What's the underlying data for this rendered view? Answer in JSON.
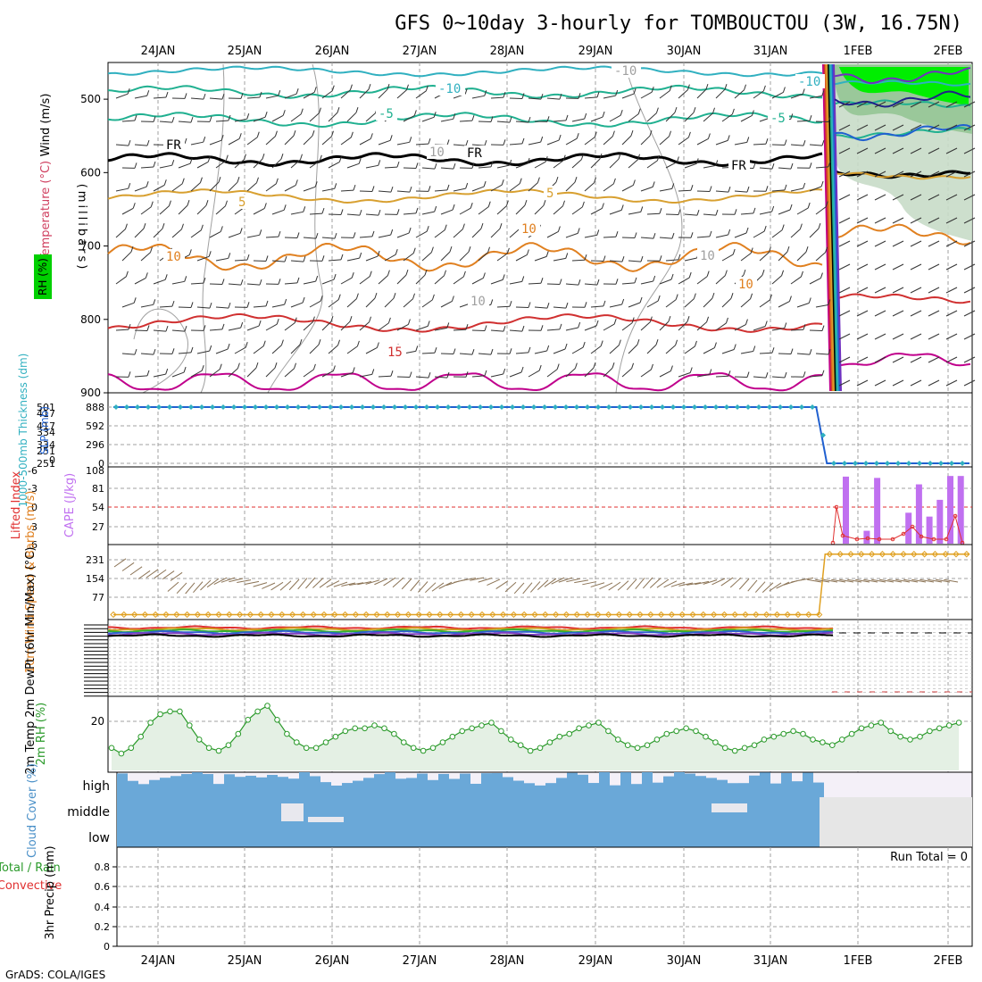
{
  "title": "GFS 0~10day 3-hourly for TOMBOUCTOU (3W, 16.75N)",
  "footer": "GrADS: COLA/IGES",
  "dates": [
    "24JAN",
    "25JAN",
    "26JAN",
    "27JAN",
    "28JAN",
    "29JAN",
    "30JAN",
    "31JAN",
    "1FEB",
    "2FEB"
  ],
  "colors": {
    "grid": "#a0a0a0",
    "rh_fill": "#00ee00",
    "slp": "#2060d0",
    "thickness": "#30b0c0",
    "cape": "#c070f0",
    "lifted": "#e03030",
    "wind_speed": "#e0a020",
    "barb": "#8b7355",
    "rh2m": "#2a9a2a",
    "cloud": "#6aa8d8",
    "cloud_bg": "#f4f0f8",
    "nodata": "#e6e6e6"
  },
  "panels": {
    "upper": {
      "ylabels": {
        "wind": "Wind (m/s)",
        "temp": "Temperature (°C)",
        "rh": "RH (%)",
        "pressure": "(millibars)"
      },
      "pressure_ticks": [
        "500",
        "600",
        "700",
        "800",
        "900"
      ],
      "contour_labels": [
        {
          "text": "-10",
          "color": "#30b0c0"
        },
        {
          "text": "-10",
          "color": "#30b0c0"
        },
        {
          "text": "-5",
          "color": "#20b090"
        },
        {
          "text": "-5",
          "color": "#20b090"
        },
        {
          "text": "FR",
          "color": "#000000"
        },
        {
          "text": "FR",
          "color": "#000000"
        },
        {
          "text": "FR",
          "color": "#000000"
        },
        {
          "text": "5",
          "color": "#d8a030"
        },
        {
          "text": "5",
          "color": "#d8a030"
        },
        {
          "text": "10",
          "color": "#e08020"
        },
        {
          "text": "10",
          "color": "#e08020"
        },
        {
          "text": "10",
          "color": "#e08020"
        },
        {
          "text": "15",
          "color": "#d03030"
        },
        {
          "text": "-10",
          "color": "#a0a0a0"
        },
        {
          "text": "10",
          "color": "#a0a0a0"
        },
        {
          "text": "10",
          "color": "#a0a0a0"
        },
        {
          "text": "10",
          "color": "#a0a0a0"
        }
      ]
    },
    "slp": {
      "ylabel_left": "1000-500mb Thickness (dm)",
      "ylabel_right": "SLP (mb)",
      "left_ticks": [
        "501",
        "417",
        "334",
        "251",
        "167",
        "0"
      ],
      "right_ticks": [
        "888",
        "592",
        "296",
        "0"
      ]
    },
    "cape": {
      "ylabel_left": "Lifted Index",
      "ylabel_right": "CAPE (J/kg)",
      "left_ticks": [
        "-6",
        "-3",
        "0",
        "3",
        "6"
      ],
      "right_ticks": [
        "108",
        "81",
        "54",
        "27"
      ]
    },
    "wind10": {
      "ylabel": "10m Wind Speed & Barbs (m/s)",
      "ticks": [
        "231",
        "154",
        "77"
      ]
    },
    "temp2m": {
      "ylabel": "2m Temp 2m DewPt (6hr Min/Max) (°C)"
    },
    "rh2m": {
      "ylabel": "2m RH (%)",
      "ticks": [
        "20"
      ]
    },
    "cloud": {
      "ylabel": "Cloud Cover (%)",
      "levels": [
        "high",
        "middle",
        "low"
      ]
    },
    "precip": {
      "ylabel": "3hr Precip (mm)",
      "ylabel_total": "Total / Rain",
      "ylabel_conv": "Convective",
      "ticks": [
        "0.8",
        "0.6",
        "0.4",
        "0.2",
        "0"
      ],
      "run_total": "Run Total = 0"
    }
  },
  "chart_data": [
    {
      "type": "line",
      "title": "1000-500mb Thickness / SLP",
      "x": [
        "24JAN",
        "25JAN",
        "26JAN",
        "27JAN",
        "28JAN",
        "29JAN",
        "30JAN",
        "31JAN",
        "1FEB",
        "2FEB"
      ],
      "series": [
        {
          "name": "SLP (mb)",
          "values": [
            900,
            900,
            900,
            900,
            900,
            900,
            900,
            900,
            0,
            0
          ]
        }
      ],
      "ylim": [
        0,
        1000
      ]
    },
    {
      "type": "bar",
      "title": "CAPE (J/kg)",
      "x_hours": [
        "1FEB-00",
        "1FEB-03",
        "1FEB-06",
        "1FEB-09",
        "1FEB-12",
        "1FEB-15",
        "1FEB-18",
        "1FEB-21",
        "2FEB-00",
        "2FEB-03",
        "2FEB-06",
        "2FEB-09"
      ],
      "values": [
        104,
        0,
        20,
        102,
        0,
        0,
        48,
        92,
        42,
        68,
        105,
        105
      ],
      "ylim": [
        0,
        108
      ]
    },
    {
      "type": "line",
      "title": "10m Wind Speed",
      "x": [
        "24JAN",
        "25JAN",
        "26JAN",
        "27JAN",
        "28JAN",
        "29JAN",
        "30JAN",
        "31JAN",
        "1FEB",
        "2FEB"
      ],
      "values": [
        5,
        5,
        5,
        5,
        5,
        5,
        5,
        5,
        225,
        225
      ],
      "ylim": [
        0,
        260
      ]
    },
    {
      "type": "line",
      "title": "2m RH (%)",
      "x_start": "23JAN 21Z",
      "step_hours": 3,
      "values": [
        8,
        6,
        8,
        12,
        17,
        20,
        21,
        21,
        16,
        11,
        8,
        7,
        9,
        13,
        18,
        21,
        23,
        18,
        13,
        10,
        8,
        8,
        10,
        12,
        14,
        15,
        15,
        16,
        15,
        13,
        10,
        8,
        7,
        8,
        10,
        12,
        14,
        15,
        16,
        17,
        14,
        11,
        9,
        7,
        8,
        10,
        12,
        13,
        15,
        16,
        17,
        14,
        11,
        9,
        8,
        9,
        11,
        13,
        14,
        15,
        14,
        12,
        10,
        8,
        7,
        8,
        9,
        11,
        12,
        13,
        14,
        13,
        11,
        10,
        9,
        11,
        13,
        15,
        16,
        17,
        14,
        12,
        11,
        12,
        14,
        15,
        16,
        17
      ],
      "ylim": [
        0,
        27
      ]
    },
    {
      "type": "area",
      "title": "Cloud Cover (%)",
      "levels": [
        "high",
        "middle",
        "low"
      ],
      "note": "low and middle layers overcast through 31JAN; no data after 31JAN 18Z"
    },
    {
      "type": "line",
      "title": "3hr Precip (mm)",
      "values": [],
      "ylim": [
        0,
        1
      ]
    }
  ]
}
